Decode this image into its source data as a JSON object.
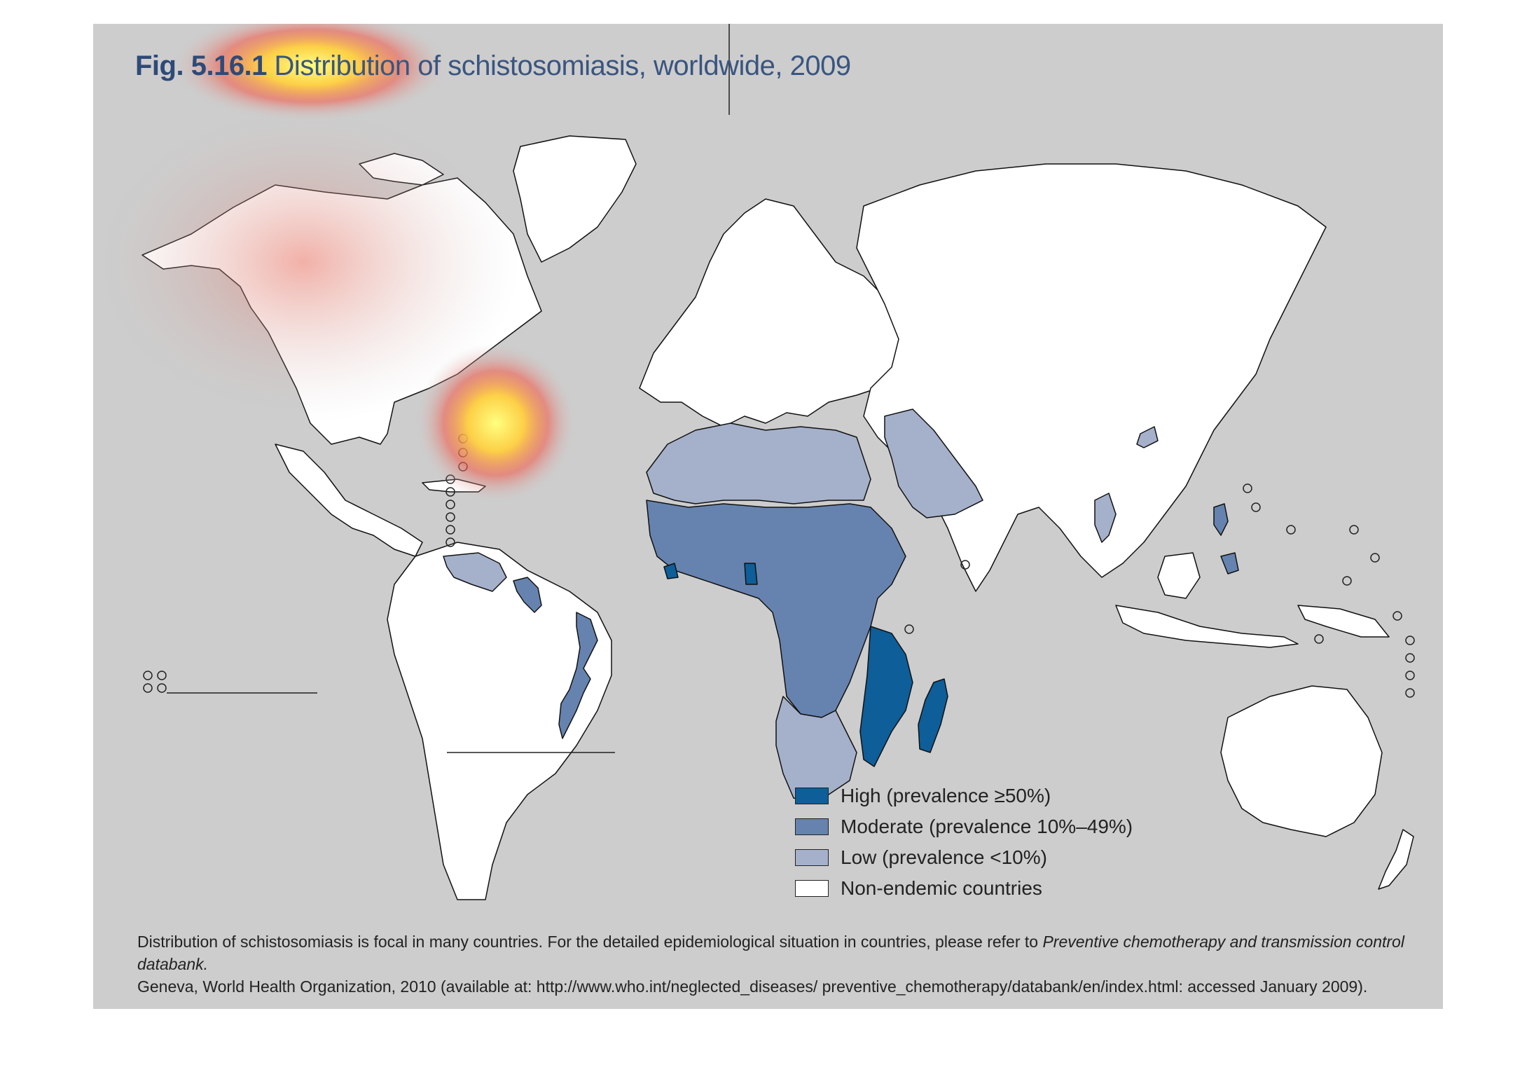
{
  "figure": {
    "fig_label": "Fig. 5.16.1",
    "title": "Distribution of schistosomiasis, worldwide, 2009"
  },
  "colors": {
    "background": "#cdcdcd",
    "high": "#0d5e99",
    "moderate": "#6683af",
    "low": "#a5b1cb",
    "non_endemic": "#ffffff",
    "outline": "#111111"
  },
  "legend": [
    {
      "key": "high",
      "label": "High (prevalence ≥50%)"
    },
    {
      "key": "moderate",
      "label": "Moderate (prevalence 10%–49%)"
    },
    {
      "key": "low",
      "label": "Low (prevalence <10%)"
    },
    {
      "key": "non_endemic",
      "label": "Non-endemic countries"
    }
  ],
  "footnote": {
    "text1": "Distribution of schistosomiasis is focal in many countries. For the detailed epidemiological situation in countries, please refer to ",
    "italic": "Preventive chemotherapy and transmission control databank.",
    "text2": "Geneva, World Health Organization, 2010 (available at: http://www.who.int/neglected_diseases/ preventive_chemotherapy/databank/en/index.html: accessed January 2009)."
  },
  "regions": [
    {
      "name": "north-america",
      "category": "non_endemic"
    },
    {
      "name": "greenland",
      "category": "non_endemic"
    },
    {
      "name": "central-america",
      "category": "non_endemic"
    },
    {
      "name": "south-america",
      "category": "non_endemic"
    },
    {
      "name": "venezuela",
      "category": "low"
    },
    {
      "name": "suriname",
      "category": "moderate"
    },
    {
      "name": "brazil-east",
      "category": "moderate"
    },
    {
      "name": "europe",
      "category": "non_endemic"
    },
    {
      "name": "russia-asia",
      "category": "non_endemic"
    },
    {
      "name": "north-africa",
      "category": "low"
    },
    {
      "name": "arabia",
      "category": "low"
    },
    {
      "name": "sub-saharan-africa",
      "category": "moderate"
    },
    {
      "name": "mozambique-tanzania",
      "category": "high"
    },
    {
      "name": "madagascar",
      "category": "high"
    },
    {
      "name": "southern-africa",
      "category": "low"
    },
    {
      "name": "china-focus",
      "category": "low"
    },
    {
      "name": "southeast-asia-focus",
      "category": "low"
    },
    {
      "name": "philippines",
      "category": "moderate"
    },
    {
      "name": "australia",
      "category": "non_endemic"
    },
    {
      "name": "new-zealand",
      "category": "non_endemic"
    }
  ]
}
